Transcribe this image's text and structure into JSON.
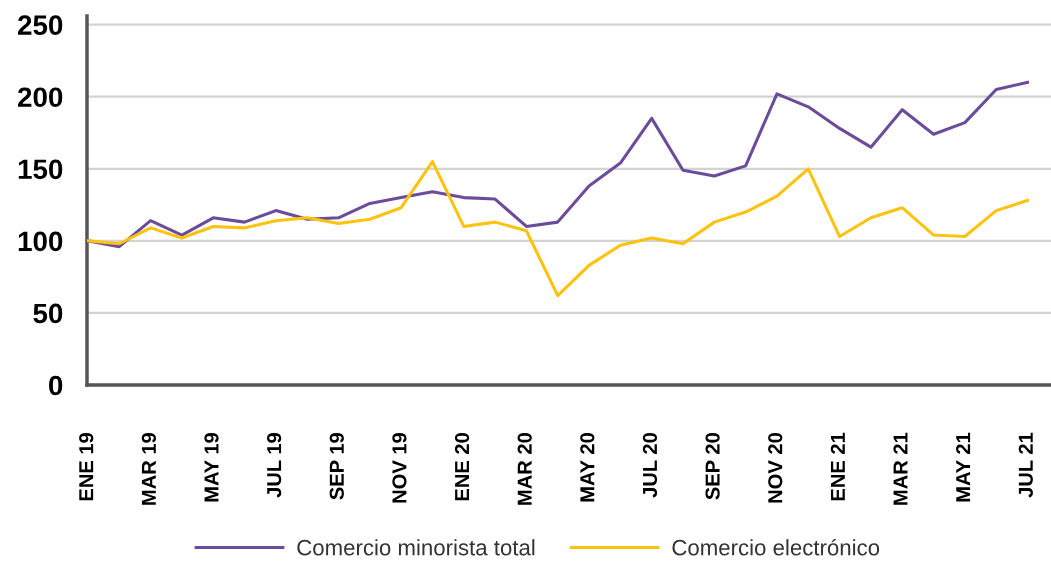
{
  "chart_data": {
    "type": "line",
    "categories": [
      "ENE 19",
      null,
      "MAR 19",
      null,
      "MAY 19",
      null,
      "JUL 19",
      null,
      "SEP 19",
      null,
      "NOV 19",
      null,
      "ENE 20",
      null,
      "MAR 20",
      null,
      "MAY 20",
      null,
      "JUL 20",
      null,
      "SEP 20",
      null,
      "NOV 20",
      null,
      "ENE 21",
      null,
      "MAR 21",
      null,
      "MAY 21",
      null,
      "JUL 21"
    ],
    "series": [
      {
        "name": "Comercio minorista total",
        "color": "#6b4c9a",
        "values": [
          100,
          96,
          114,
          104,
          116,
          113,
          121,
          115,
          116,
          126,
          130,
          134,
          130,
          129,
          110,
          113,
          138,
          154,
          185,
          149,
          145,
          152,
          202,
          193,
          178,
          165,
          191,
          174,
          182,
          205,
          210
        ]
      },
      {
        "name": "Comercio electrónico",
        "color": "#ffc20e",
        "values": [
          100,
          98,
          109,
          102,
          110,
          109,
          114,
          116,
          112,
          115,
          123,
          155,
          110,
          113,
          107,
          62,
          83,
          97,
          102,
          98,
          113,
          120,
          131,
          150,
          103,
          116,
          123,
          104,
          103,
          121,
          128
        ]
      }
    ],
    "ylim": [
      0,
      256
    ],
    "yticks": [
      0,
      50,
      100,
      150,
      200,
      250
    ],
    "grid": "y",
    "legend": "bottom",
    "line_style": "solid"
  }
}
